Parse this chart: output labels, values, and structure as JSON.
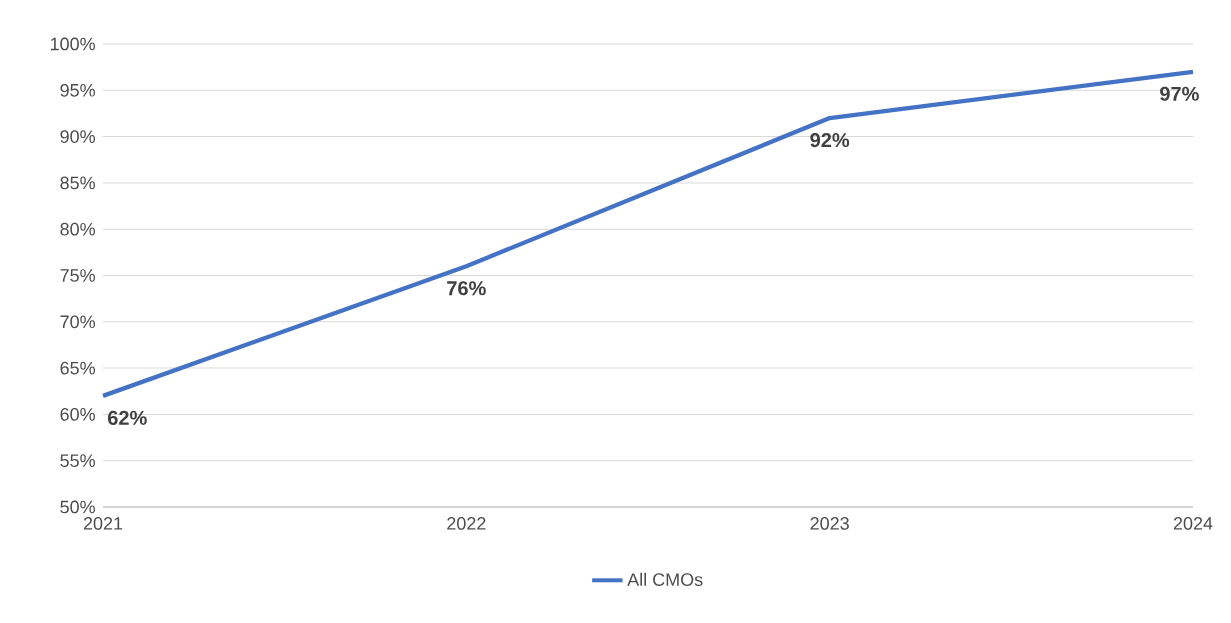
{
  "chart_data": {
    "type": "line",
    "categories": [
      "2021",
      "2022",
      "2023",
      "2024"
    ],
    "series": [
      {
        "name": "All CMOs",
        "color": "#4472c4",
        "values": [
          62,
          76,
          92,
          97
        ],
        "value_labels": [
          "62%",
          "76%",
          "92%",
          "97%"
        ]
      }
    ],
    "ylim": [
      50,
      100
    ],
    "yticks": [
      {
        "value": 50,
        "label": "50%"
      },
      {
        "value": 55,
        "label": "55%"
      },
      {
        "value": 60,
        "label": "60%"
      },
      {
        "value": 65,
        "label": "65%"
      },
      {
        "value": 70,
        "label": "70%"
      },
      {
        "value": 75,
        "label": "75%"
      },
      {
        "value": 80,
        "label": "80%"
      },
      {
        "value": 85,
        "label": "85%"
      },
      {
        "value": 90,
        "label": "90%"
      },
      {
        "value": 95,
        "label": "95%"
      },
      {
        "value": 100,
        "label": "100%"
      }
    ],
    "grid": "y",
    "legend": "bottom"
  }
}
